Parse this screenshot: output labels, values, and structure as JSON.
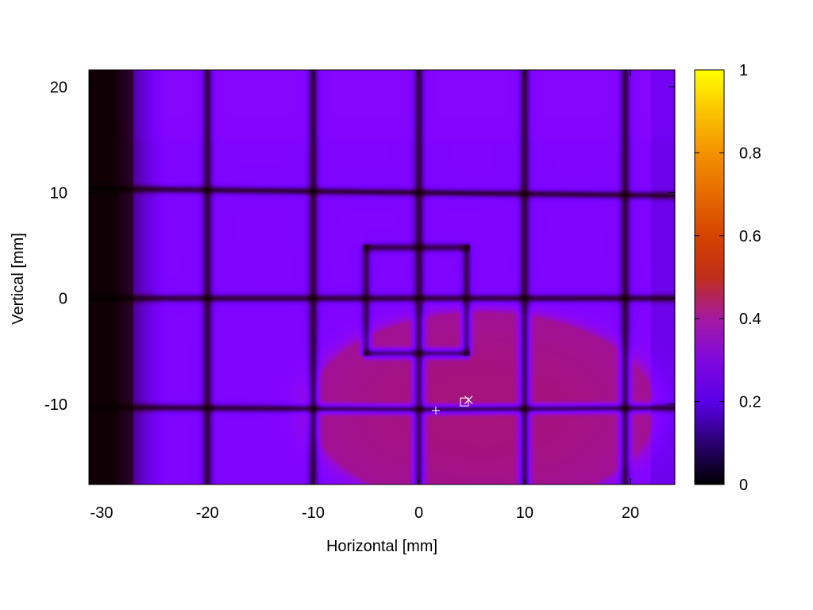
{
  "chart_data": {
    "type": "heatmap",
    "title": "",
    "xlabel": "Horizontal [mm]",
    "ylabel": "Vertical [mm]",
    "xlim": [
      -31.2,
      24.2
    ],
    "ylim": [
      -17.6,
      21.6
    ],
    "xticks": [
      -30,
      -20,
      -10,
      0,
      10,
      20
    ],
    "yticks": [
      -10,
      0,
      10,
      20
    ],
    "xtick_labels": [
      "-30",
      "-20",
      "-10",
      "0",
      "10",
      "20"
    ],
    "ytick_labels": [
      "-10",
      "0",
      "10",
      "20"
    ],
    "colorbar": {
      "range": [
        0,
        1
      ],
      "ticks": [
        0,
        0.2,
        0.4,
        0.6,
        0.8,
        1
      ],
      "tick_labels": [
        "0",
        "0.2",
        "0.4",
        "0.6",
        "0.8",
        "1"
      ],
      "colormap": "gnuplot"
    },
    "features": {
      "bright_ellipse": {
        "center": [
          6.0,
          -10.5
        ],
        "radius": [
          16.0,
          9.0
        ],
        "value": 0.42
      },
      "background_level": 0.25,
      "dark_vertical_lines_x": [
        -20,
        -10,
        0,
        10,
        19.5
      ],
      "dark_horizontal_lines_y": [
        10,
        0,
        -10.5
      ],
      "dark_square": {
        "x": [
          -5,
          4.5
        ],
        "y": [
          -5.2,
          4.8
        ]
      },
      "dark_left_edge_x_max": -27
    },
    "markers": [
      {
        "symbol": "+",
        "x": 1.6,
        "y": -10.6
      },
      {
        "symbol": "square",
        "x": 4.3,
        "y": -9.8
      },
      {
        "symbol": "x",
        "x": 4.7,
        "y": -9.6
      }
    ]
  },
  "colors": {
    "background": "#ffffff",
    "axis": "#000000",
    "marker": "#ffffff"
  }
}
